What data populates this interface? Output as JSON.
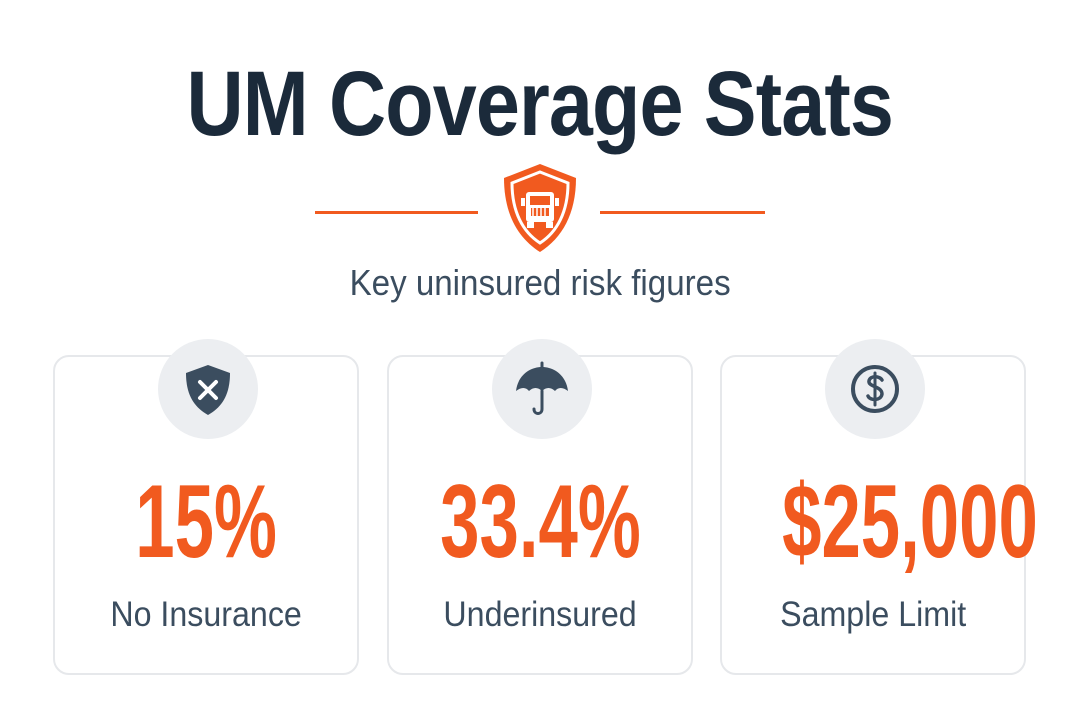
{
  "header": {
    "title": "UM Coverage Stats",
    "subtitle": "Key uninsured risk figures"
  },
  "cards": [
    {
      "value": "15%",
      "label": "No Insurance"
    },
    {
      "value": "33.4%",
      "label": "Underinsured"
    },
    {
      "value": "$25,000",
      "label": "Sample Limit"
    }
  ]
}
